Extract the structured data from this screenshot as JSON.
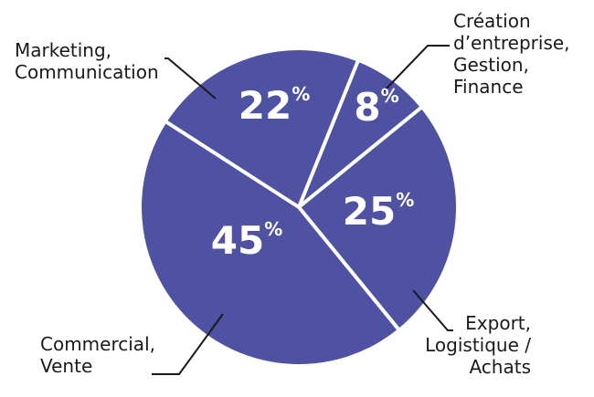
{
  "chart_data": {
    "type": "pie",
    "start_angle_deg": 22,
    "slices": [
      {
        "label_lines": [
          "Création",
          "d’entreprise,",
          "Gestion,",
          "Finance"
        ],
        "value": 8,
        "value_text": "8",
        "unit": "%"
      },
      {
        "label_lines": [
          "Export,",
          "Logistique /",
          "Achats"
        ],
        "value": 25,
        "value_text": "25",
        "unit": "%"
      },
      {
        "label_lines": [
          "Commercial,",
          "Vente"
        ],
        "value": 45,
        "value_text": "45",
        "unit": "%"
      },
      {
        "label_lines": [
          "Marketing,",
          "Communication"
        ],
        "value": 22,
        "value_text": "22",
        "unit": "%"
      }
    ],
    "colors": {
      "slice": "#4f52a3",
      "separator": "#ffffff",
      "leader": "#1a1a1a"
    }
  }
}
